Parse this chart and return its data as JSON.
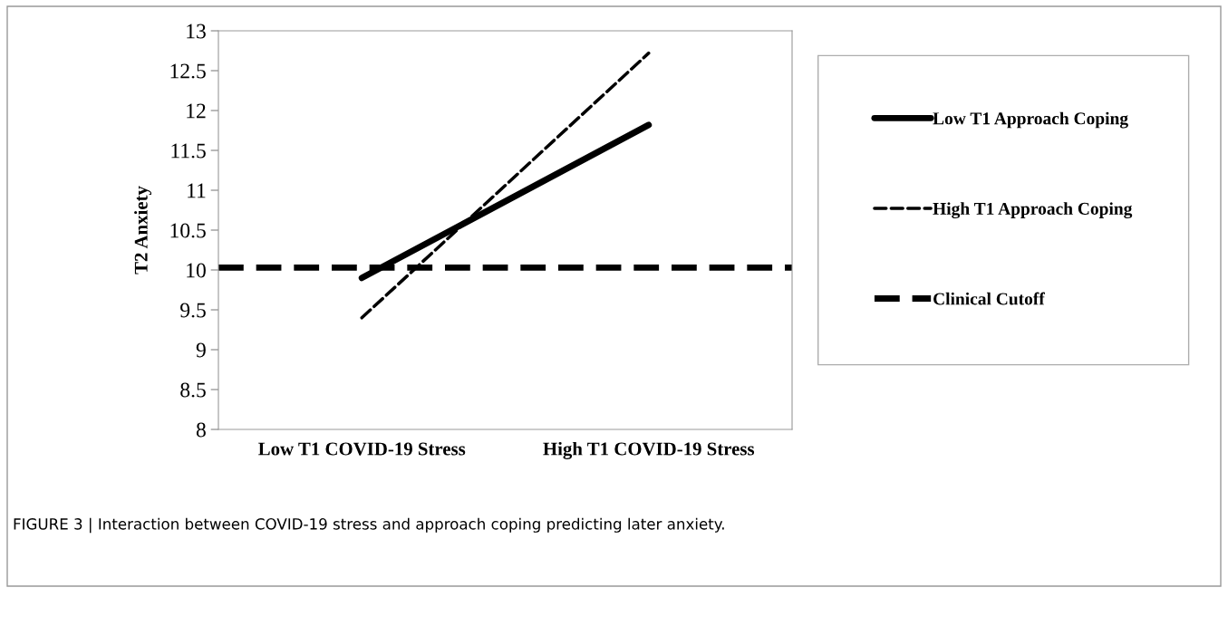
{
  "chart_data": {
    "type": "line",
    "ylabel": "T2 Anxiety",
    "categories": [
      "Low T1 COVID-19 Stress",
      "High T1 COVID-19 Stress"
    ],
    "series": [
      {
        "name": "Low T1 Approach Coping",
        "color": "#000000",
        "values": [
          9.9,
          11.82
        ],
        "line_style": "solid"
      },
      {
        "name": "High T1 Approach Coping",
        "color": "#000000",
        "values": [
          9.4,
          12.72
        ],
        "line_style": "dashed"
      }
    ],
    "ref_lines": [
      {
        "axis": "y",
        "value": 10.03,
        "label": "Clinical Cutoff",
        "color": "#000000",
        "line_style": "dashed"
      }
    ],
    "ylim": [
      8,
      13
    ],
    "yticks": [
      8,
      8.5,
      9,
      9.5,
      10,
      10.5,
      11,
      11.5,
      12,
      12.5,
      13
    ],
    "grid": false,
    "legend": "right",
    "marker": "none",
    "annotations": [
      "FIGURE 3 | Interaction between COVID-19 stress and approach coping predicting later anxiety."
    ]
  }
}
